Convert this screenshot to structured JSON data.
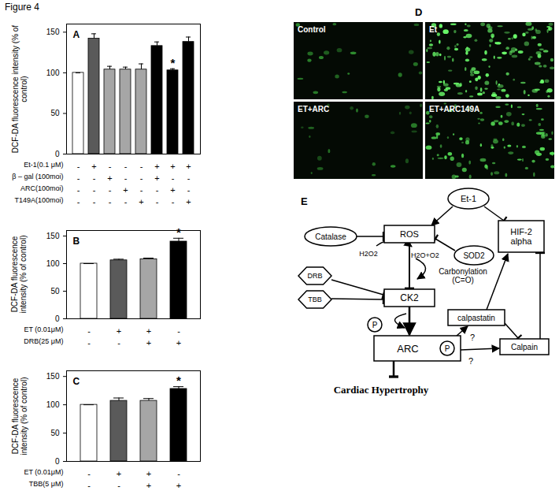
{
  "figure_title": "Figure 4",
  "chart_data": [
    {
      "type": "bar",
      "title": "A",
      "y_label": "DCF-DA fluorescence intensity (% of control)",
      "values": [
        100,
        142,
        104,
        104,
        104,
        133,
        103,
        138
      ],
      "errors": [
        0,
        6,
        4,
        3,
        7,
        5,
        2,
        6
      ],
      "significance": [
        null,
        null,
        null,
        null,
        null,
        null,
        "*",
        null
      ],
      "colors": [
        "#ffffff",
        "#5a5a5a",
        "#a6a6a6",
        "#a6a6a6",
        "#a6a6a6",
        "#000000",
        "#000000",
        "#000000"
      ],
      "conditions": [
        {
          "label": "Et-1(0.1 μM)",
          "signs": [
            "-",
            "+",
            "-",
            "-",
            "-",
            "+",
            "+",
            "+"
          ]
        },
        {
          "label": "β – gal (100moi)",
          "signs": [
            "-",
            "-",
            "+",
            "-",
            "-",
            "+",
            "-",
            "-"
          ]
        },
        {
          "label": "ARC(100moi)",
          "signs": [
            "-",
            "-",
            "-",
            "+",
            "-",
            "-",
            "+",
            "-"
          ]
        },
        {
          "label": "T149A(100moi)",
          "signs": [
            "-",
            "-",
            "-",
            "-",
            "+",
            "-",
            "-",
            "+"
          ]
        }
      ],
      "ylim": [
        0,
        160
      ],
      "yticks": [
        0,
        50,
        100,
        150
      ]
    },
    {
      "type": "bar",
      "title": "B",
      "y_label": "DCF-DA fluorescence intensity (% of control)",
      "values": [
        100,
        106,
        108,
        140
      ],
      "errors": [
        0,
        2,
        2,
        6
      ],
      "significance": [
        null,
        null,
        null,
        "*"
      ],
      "colors": [
        "#ffffff",
        "#5a5a5a",
        "#a6a6a6",
        "#000000"
      ],
      "conditions": [
        {
          "label": "ET (0.01μM)",
          "signs": [
            "-",
            "+",
            "+",
            "-"
          ]
        },
        {
          "label": "DRB(25 μM)",
          "signs": [
            "-",
            "-",
            "+",
            "+"
          ]
        }
      ],
      "ylim": [
        0,
        160
      ],
      "yticks": [
        0,
        50,
        100,
        150
      ]
    },
    {
      "type": "bar",
      "title": "C",
      "y_label": "DCF-DA fluorescence intensity (% of control)",
      "values": [
        100,
        107,
        107,
        128
      ],
      "errors": [
        0,
        5,
        4,
        4
      ],
      "significance": [
        null,
        null,
        null,
        "*"
      ],
      "colors": [
        "#ffffff",
        "#5a5a5a",
        "#a6a6a6",
        "#000000"
      ],
      "conditions": [
        {
          "label": "ET (0.01μM)",
          "signs": [
            "-",
            "+",
            "+",
            "-"
          ]
        },
        {
          "label": "TBB(5 μM)",
          "signs": [
            "-",
            "-",
            "+",
            "+"
          ]
        }
      ],
      "ylim": [
        0,
        160
      ],
      "yticks": [
        0,
        50,
        100,
        150
      ]
    }
  ],
  "panel_d": {
    "label": "D",
    "images": [
      "Control",
      "Et",
      "ET+ARC",
      "ET+ARC149A"
    ]
  },
  "panel_e": {
    "label": "E",
    "nodes": [
      "Et-1",
      "HIF-2 alpha",
      "Catalase",
      "ROS",
      "SOD2",
      "H2O2",
      "H2O+O2",
      "Carbonylation (C=O)",
      "DRB",
      "TBB",
      "CK2",
      "P",
      "ARC",
      "P",
      "calpastatin",
      "Calpain",
      "?",
      "?",
      "Cardiac Hypertrophy"
    ]
  }
}
